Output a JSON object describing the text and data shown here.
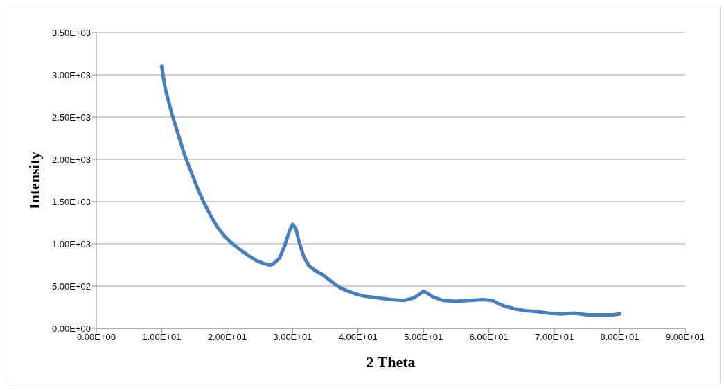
{
  "chart_data": {
    "type": "line",
    "xlabel": "2 Theta",
    "ylabel": "Intensity",
    "grid": "y",
    "legend": false,
    "marker": "none",
    "line_style": "solid",
    "xlim": [
      0,
      90
    ],
    "ylim": [
      0,
      3500
    ],
    "xticks": [
      {
        "value": 0,
        "label": "0.00E+00"
      },
      {
        "value": 10,
        "label": "1.00E+01"
      },
      {
        "value": 20,
        "label": "2.00E+01"
      },
      {
        "value": 30,
        "label": "3.00E+01"
      },
      {
        "value": 40,
        "label": "4.00E+01"
      },
      {
        "value": 50,
        "label": "5.00E+01"
      },
      {
        "value": 60,
        "label": "6.00E+01"
      },
      {
        "value": 70,
        "label": "7.00E+01"
      },
      {
        "value": 80,
        "label": "8.00E+01"
      },
      {
        "value": 90,
        "label": "9.00E+01"
      }
    ],
    "yticks": [
      {
        "value": 0,
        "label": "0.00E+00"
      },
      {
        "value": 500,
        "label": "5.00E+02"
      },
      {
        "value": 1000,
        "label": "1.00E+03"
      },
      {
        "value": 1500,
        "label": "1.50E+03"
      },
      {
        "value": 2000,
        "label": "2.00E+03"
      },
      {
        "value": 2500,
        "label": "2.50E+03"
      },
      {
        "value": 3000,
        "label": "3.00E+03"
      },
      {
        "value": 3500,
        "label": "3.50E+03"
      }
    ],
    "series": [
      {
        "color": "#4a7ebb",
        "x": [
          10,
          10.5,
          11.5,
          12.5,
          13.5,
          14.5,
          15.5,
          16.5,
          17.5,
          18.5,
          19.5,
          20.5,
          21.5,
          22.5,
          23.5,
          24.5,
          25.5,
          26.5,
          27,
          28,
          28.8,
          29.5,
          30,
          30.5,
          31,
          31.7,
          32.5,
          33.5,
          34.5,
          35.5,
          36.5,
          37.5,
          38.5,
          39.5,
          41,
          43,
          45,
          47,
          48.5,
          49.5,
          50,
          50.5,
          51.5,
          53,
          55,
          57,
          59,
          60.5,
          61.5,
          62.5,
          64,
          65.5,
          67,
          69,
          71,
          73,
          75,
          77,
          79,
          80
        ],
        "values": [
          3100,
          2850,
          2550,
          2300,
          2050,
          1850,
          1650,
          1480,
          1330,
          1200,
          1100,
          1020,
          960,
          900,
          850,
          800,
          770,
          750,
          760,
          830,
          980,
          1150,
          1230,
          1180,
          1020,
          850,
          740,
          680,
          640,
          580,
          520,
          470,
          440,
          410,
          380,
          360,
          340,
          330,
          360,
          410,
          440,
          420,
          370,
          330,
          320,
          330,
          340,
          330,
          290,
          260,
          230,
          210,
          200,
          180,
          170,
          180,
          160,
          160,
          160,
          170
        ]
      }
    ]
  }
}
